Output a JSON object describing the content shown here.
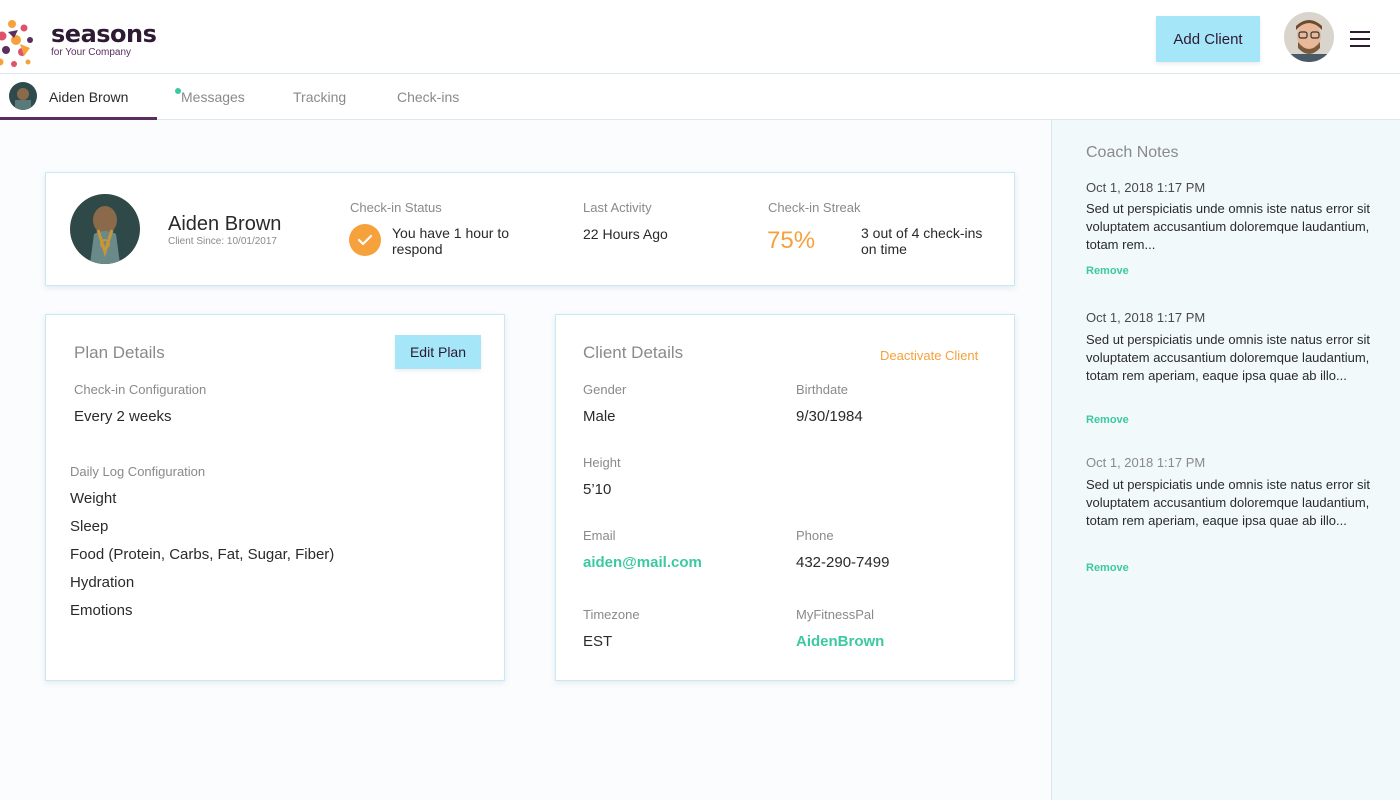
{
  "brand": {
    "name": "seasons",
    "tagline": "for Your Company"
  },
  "header": {
    "add_client_label": "Add Client"
  },
  "tabs": [
    {
      "label": "Aiden Brown"
    },
    {
      "label": "Messages"
    },
    {
      "label": "Tracking"
    },
    {
      "label": "Check-ins"
    }
  ],
  "summary": {
    "name": "Aiden Brown",
    "client_since": "Client Since: 10/01/2017",
    "checkin_status_label": "Check-in Status",
    "checkin_status_value": "You have 1 hour to respond",
    "last_activity_label": "Last Activity",
    "last_activity_value": "22 Hours Ago",
    "streak_label": "Check-in Streak",
    "streak_percent": "75%",
    "streak_detail": "3 out of 4 check-ins on time"
  },
  "plan": {
    "title": "Plan Details",
    "edit_label": "Edit Plan",
    "checkin_config_label": "Check-in Configuration",
    "checkin_config_value": "Every 2 weeks",
    "daily_log_label": "Daily Log Configuration",
    "daily_log_items": [
      "Weight",
      "Sleep",
      "Food (Protein, Carbs, Fat, Sugar, Fiber)",
      "Hydration",
      "Emotions"
    ]
  },
  "details": {
    "title": "Client Details",
    "deactivate_label": "Deactivate Client",
    "gender_label": "Gender",
    "gender_value": "Male",
    "birthdate_label": "Birthdate",
    "birthdate_value": "9/30/1984",
    "height_label": "Height",
    "height_value": "5’10",
    "email_label": "Email",
    "email_value": "aiden@mail.com",
    "phone_label": "Phone",
    "phone_value": "432-290-7499",
    "timezone_label": "Timezone",
    "timezone_value": "EST",
    "mfp_label": "MyFitnessPal",
    "mfp_value": "AidenBrown"
  },
  "notes": {
    "title": "Coach Notes",
    "remove_label": "Remove",
    "items": [
      {
        "date": "Oct 1, 2018 1:17 PM",
        "text": "Sed ut perspiciatis unde omnis iste natus error sit voluptatem accusantium doloremque laudantium, totam rem..."
      },
      {
        "date": "Oct 1, 2018 1:17 PM",
        "text": "Sed ut perspiciatis unde omnis iste natus error sit voluptatem accusantium doloremque laudantium, totam rem aperiam, eaque ipsa quae ab illo..."
      },
      {
        "date": "Oct 1, 2018 1:17 PM",
        "text": "Sed ut perspiciatis unde omnis iste natus error sit voluptatem accusantium doloremque laudantium, totam rem aperiam, eaque ipsa quae ab illo..."
      }
    ]
  },
  "colors": {
    "accent_teal": "#3cc9a2",
    "accent_orange": "#f6a13b",
    "button_blue": "#a5e6f8",
    "brand_purple": "#5a2e5e"
  },
  "icons": [
    "seasons-logo-icon",
    "user-avatar",
    "menu-icon",
    "check-icon"
  ]
}
